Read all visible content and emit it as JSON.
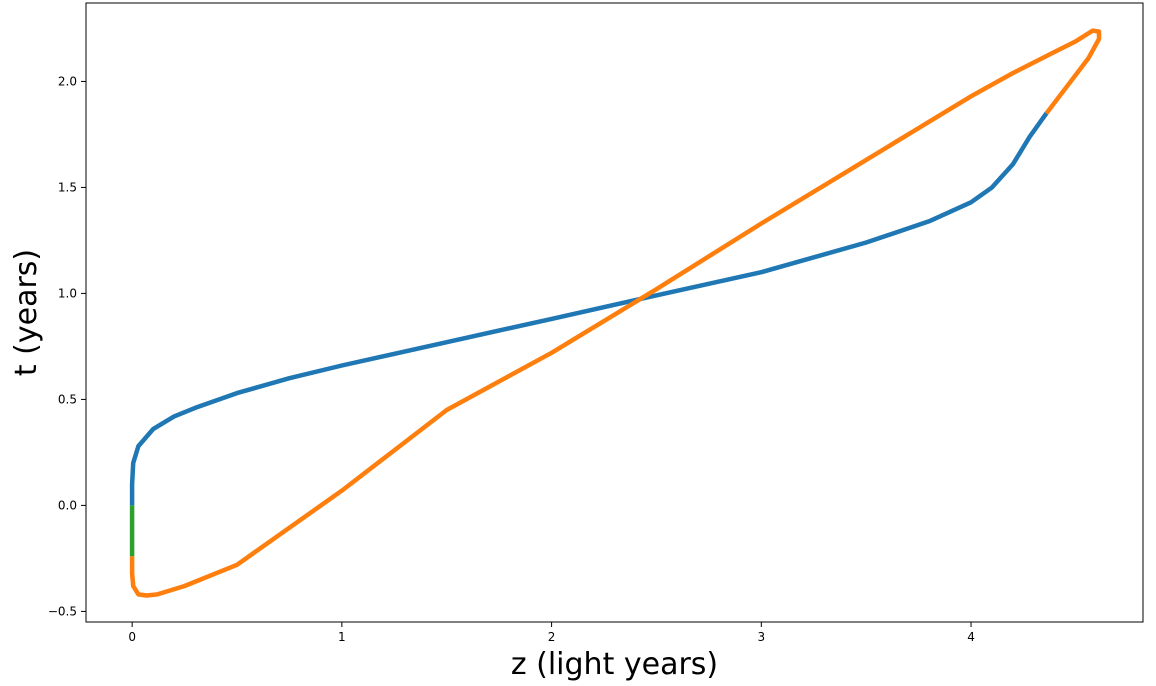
{
  "chart_data": {
    "type": "line",
    "title": "",
    "xlabel": "z (light years)",
    "ylabel": "t (years)",
    "xlim": [
      -0.22,
      4.82
    ],
    "ylim": [
      -0.55,
      2.37
    ],
    "xticks": [
      {
        "value": 0,
        "label": "0"
      },
      {
        "value": 1,
        "label": "1"
      },
      {
        "value": 2,
        "label": "2"
      },
      {
        "value": 3,
        "label": "3"
      },
      {
        "value": 4,
        "label": "4"
      }
    ],
    "yticks": [
      {
        "value": -0.5,
        "label": "−0.5"
      },
      {
        "value": 0.0,
        "label": "0.0"
      },
      {
        "value": 0.5,
        "label": "0.5"
      },
      {
        "value": 1.0,
        "label": "1.0"
      },
      {
        "value": 1.5,
        "label": "1.5"
      },
      {
        "value": 2.0,
        "label": "2.0"
      }
    ],
    "grid": false,
    "series": [
      {
        "color": "#1f77b4",
        "points": [
          [
            0.0,
            0.0
          ],
          [
            0.0,
            0.1
          ],
          [
            0.005,
            0.2
          ],
          [
            0.03,
            0.28
          ],
          [
            0.1,
            0.36
          ],
          [
            0.2,
            0.42
          ],
          [
            0.3,
            0.46
          ],
          [
            0.5,
            0.53
          ],
          [
            0.75,
            0.6
          ],
          [
            1.0,
            0.66
          ],
          [
            1.5,
            0.77
          ],
          [
            2.0,
            0.88
          ],
          [
            2.45,
            0.98
          ],
          [
            3.0,
            1.1
          ],
          [
            3.5,
            1.24
          ],
          [
            3.8,
            1.34
          ],
          [
            4.0,
            1.43
          ],
          [
            4.1,
            1.5
          ],
          [
            4.2,
            1.61
          ],
          [
            4.28,
            1.74
          ],
          [
            4.36,
            1.85
          ]
        ]
      },
      {
        "color": "#ff7f0e",
        "points": [
          [
            0.0,
            -0.24
          ],
          [
            0.0,
            -0.32
          ],
          [
            0.005,
            -0.38
          ],
          [
            0.03,
            -0.42
          ],
          [
            0.07,
            -0.425
          ],
          [
            0.12,
            -0.42
          ],
          [
            0.25,
            -0.38
          ],
          [
            0.5,
            -0.28
          ],
          [
            1.0,
            0.07
          ],
          [
            1.5,
            0.45
          ],
          [
            2.0,
            0.72
          ],
          [
            2.5,
            1.02
          ],
          [
            3.0,
            1.33
          ],
          [
            3.5,
            1.63
          ],
          [
            4.0,
            1.93
          ],
          [
            4.2,
            2.04
          ],
          [
            4.4,
            2.14
          ],
          [
            4.5,
            2.19
          ],
          [
            4.58,
            2.24
          ],
          [
            4.61,
            2.235
          ],
          [
            4.61,
            2.2
          ],
          [
            4.56,
            2.11
          ],
          [
            4.46,
            1.98
          ],
          [
            4.36,
            1.85
          ]
        ]
      },
      {
        "color": "#2ca02c",
        "points": [
          [
            0.0,
            0.0
          ],
          [
            0.0,
            -0.24
          ]
        ]
      }
    ]
  }
}
